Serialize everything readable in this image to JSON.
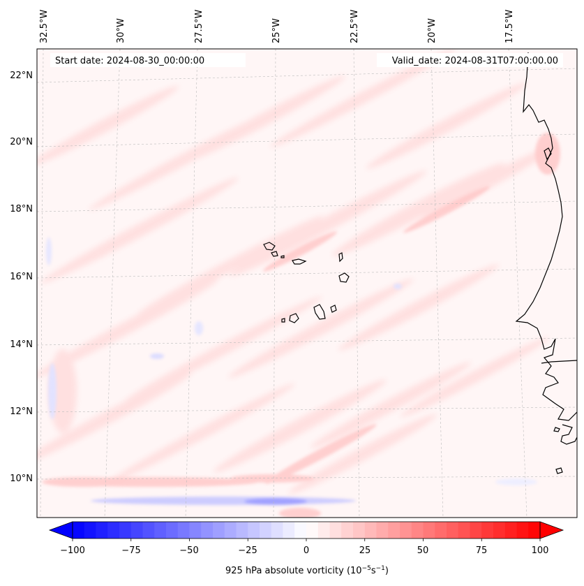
{
  "header": {
    "start_date": "Start date: 2024-08-30_00:00:00",
    "valid_date": "Valid_date: 2024-08-31T07:00:00.00"
  },
  "lon_labels": [
    "32.5°W",
    "30°W",
    "27.5°W",
    "25°W",
    "22.5°W",
    "20°W",
    "17.5°W"
  ],
  "lat_labels": [
    "22°N",
    "20°N",
    "18°N",
    "16°N",
    "14°N",
    "12°N",
    "10°N"
  ],
  "colorbar": {
    "ticks": [
      "−100",
      "−75",
      "−50",
      "−25",
      "0",
      "25",
      "50",
      "75",
      "100"
    ],
    "label_main": "925 hPa absolute vorticity (10",
    "label_sup1": "−5",
    "label_mid": "s",
    "label_sup2": "−1",
    "label_end": ")",
    "min": -100,
    "max": 100,
    "levels": 41,
    "color_neg": "#0000ff",
    "color_mid": "#ffffff",
    "color_pos": "#ff0000"
  },
  "colors": {
    "background_field": "#fff6f6",
    "coastline": "#000000",
    "grid": "#bbbbbb"
  }
}
